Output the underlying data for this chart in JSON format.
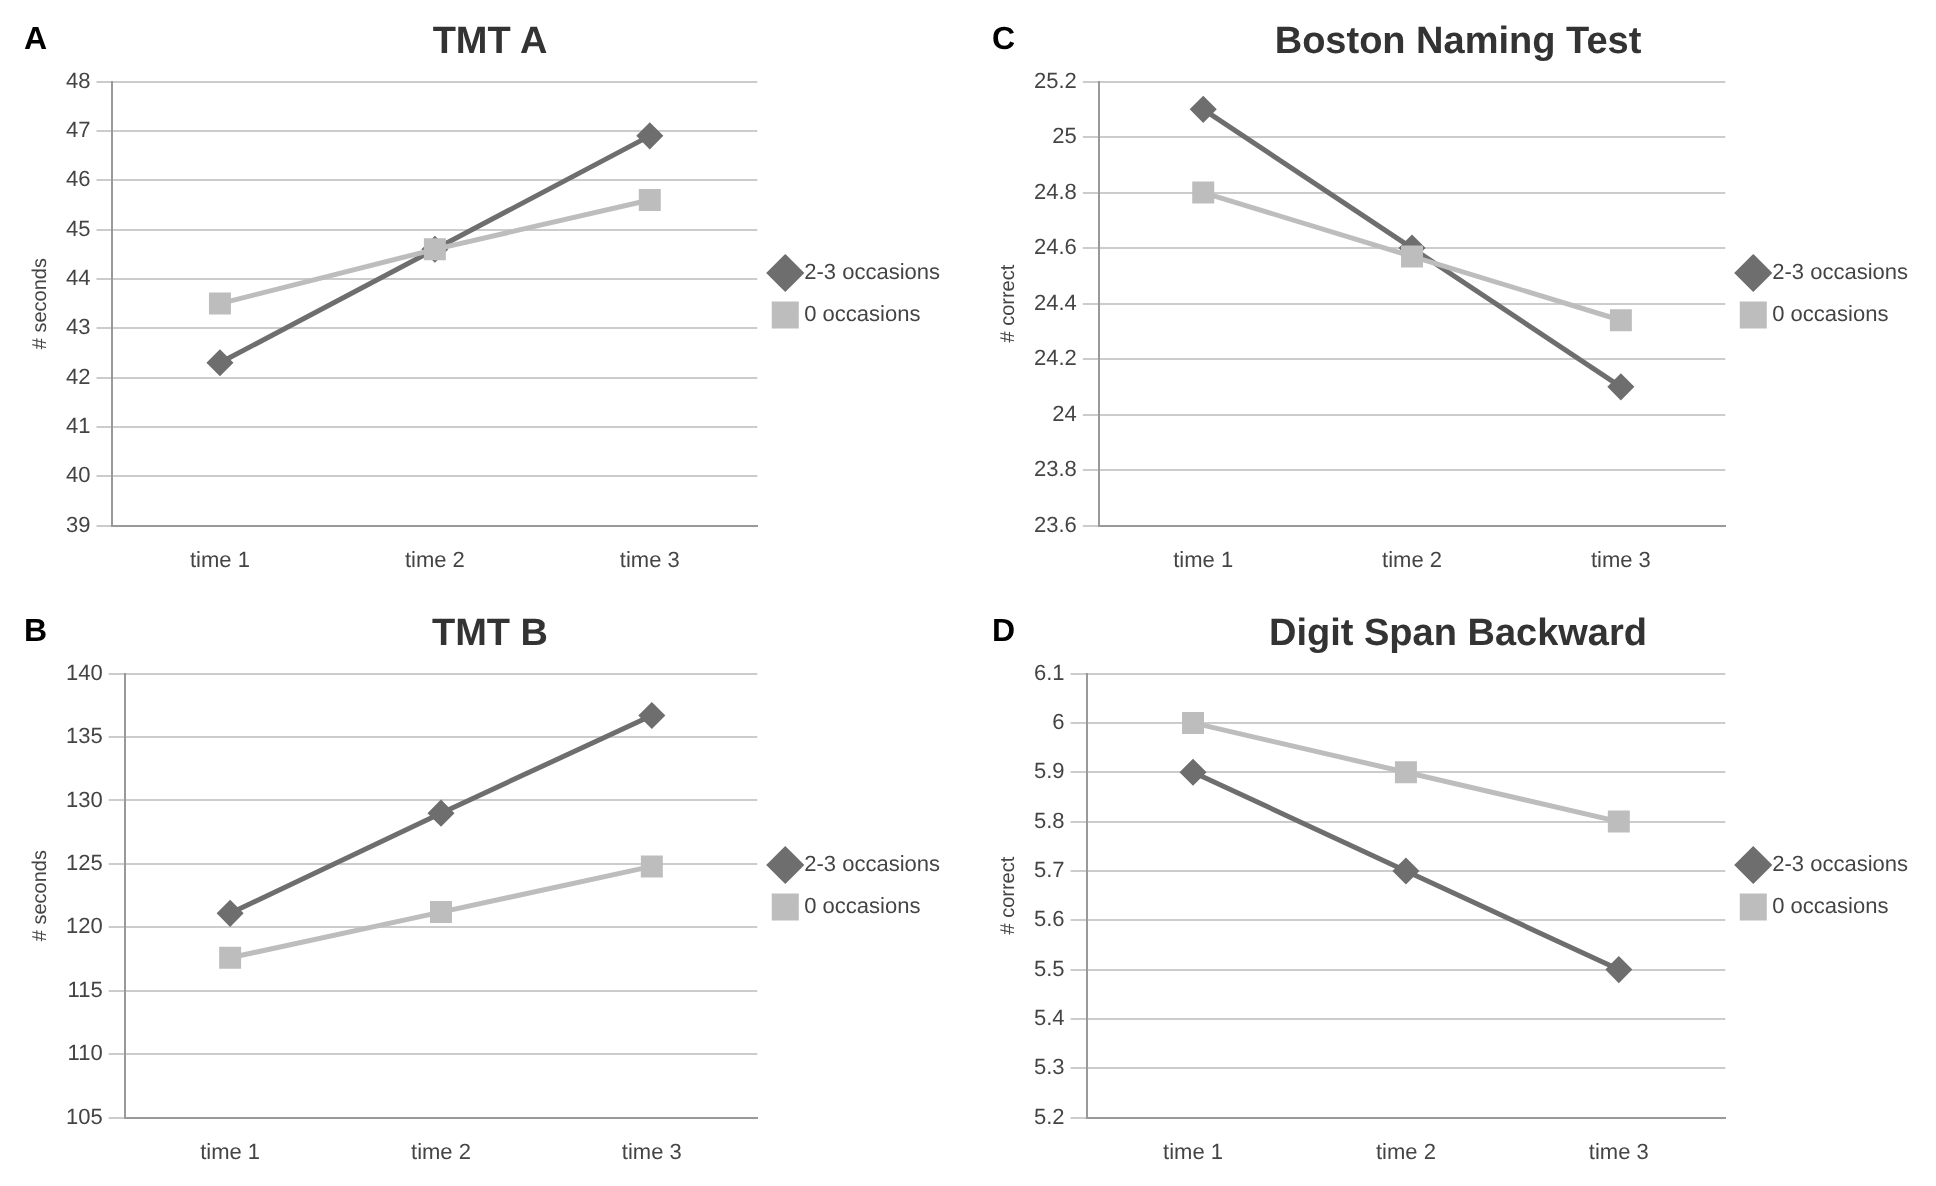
{
  "chart_data": [
    {
      "type": "line",
      "title": "TMT A",
      "ylabel": "# seconds",
      "annotations": [
        "A"
      ],
      "categories": [
        "time 1",
        "time 2",
        "time 3"
      ],
      "ylim": [
        39,
        48
      ],
      "yticks": [
        39,
        40,
        41,
        42,
        43,
        44,
        45,
        46,
        47,
        48
      ],
      "grid": "y",
      "legend": "right",
      "series": [
        {
          "name": "2-3 occasions",
          "color": "#6e6e6e",
          "marker": "diamond",
          "values": [
            42.3,
            44.6,
            46.9
          ]
        },
        {
          "name": "0 occasions",
          "color": "#bdbdbd",
          "marker": "square",
          "values": [
            43.5,
            44.6,
            45.6
          ]
        }
      ]
    },
    {
      "type": "line",
      "title": "Boston Naming Test",
      "ylabel": "# correct",
      "annotations": [
        "C"
      ],
      "categories": [
        "time 1",
        "time 2",
        "time 3"
      ],
      "ylim": [
        23.6,
        25.2
      ],
      "yticks": [
        23.6,
        23.8,
        24,
        24.2,
        24.4,
        24.6,
        24.8,
        25,
        25.2
      ],
      "grid": "y",
      "legend": "right",
      "series": [
        {
          "name": "2-3 occasions",
          "color": "#6e6e6e",
          "marker": "diamond",
          "values": [
            25.1,
            24.6,
            24.1
          ]
        },
        {
          "name": "0 occasions",
          "color": "#bdbdbd",
          "marker": "square",
          "values": [
            24.8,
            24.57,
            24.34
          ]
        }
      ]
    },
    {
      "type": "line",
      "title": "TMT B",
      "ylabel": "# seconds",
      "annotations": [
        "B"
      ],
      "categories": [
        "time 1",
        "time 2",
        "time 3"
      ],
      "ylim": [
        105,
        140
      ],
      "yticks": [
        105,
        110,
        115,
        120,
        125,
        130,
        135,
        140
      ],
      "grid": "y",
      "legend": "right",
      "series": [
        {
          "name": "2-3 occasions",
          "color": "#6e6e6e",
          "marker": "diamond",
          "values": [
            121.1,
            129,
            136.7
          ]
        },
        {
          "name": "0 occasions",
          "color": "#bdbdbd",
          "marker": "square",
          "values": [
            117.6,
            121.2,
            124.8
          ]
        }
      ]
    },
    {
      "type": "line",
      "title": "Digit Span Backward",
      "ylabel": "# correct",
      "annotations": [
        "D"
      ],
      "categories": [
        "time 1",
        "time 2",
        "time 3"
      ],
      "ylim": [
        5.2,
        6.1
      ],
      "yticks": [
        5.2,
        5.3,
        5.4,
        5.5,
        5.6,
        5.7,
        5.8,
        5.9,
        6,
        6.1
      ],
      "grid": "y",
      "legend": "right",
      "series": [
        {
          "name": "2-3 occasions",
          "color": "#6e6e6e",
          "marker": "diamond",
          "values": [
            5.9,
            5.7,
            5.5
          ]
        },
        {
          "name": "0 occasions",
          "color": "#bdbdbd",
          "marker": "square",
          "values": [
            6,
            5.9,
            5.8
          ]
        }
      ]
    }
  ]
}
